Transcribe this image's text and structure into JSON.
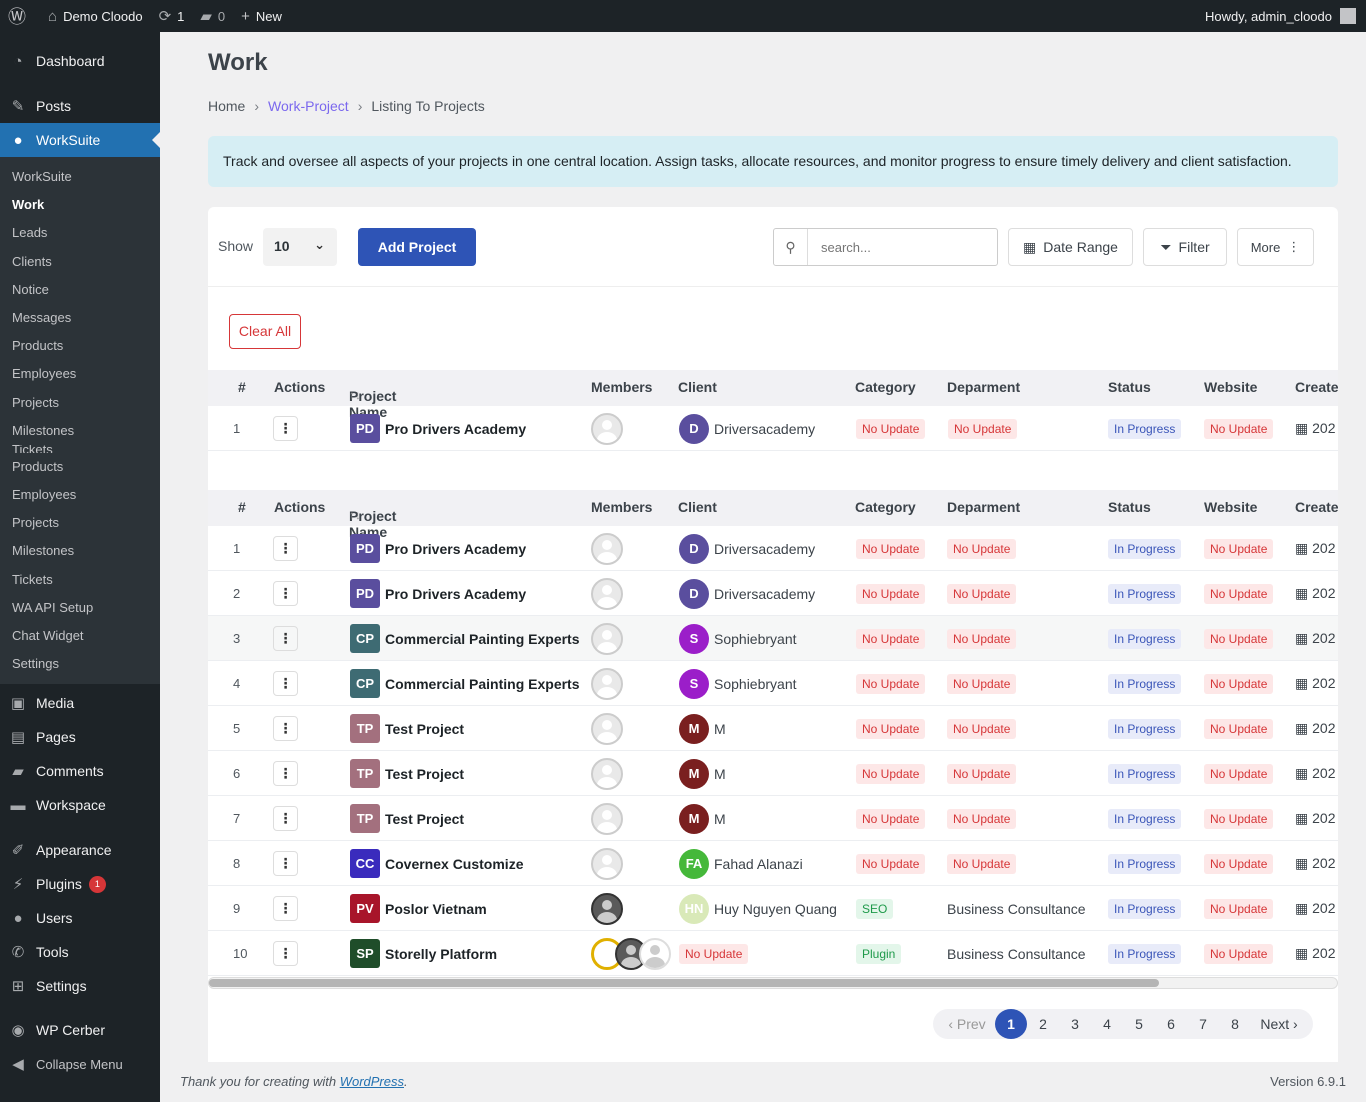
{
  "adminbar": {
    "site_name": "Demo Cloodo",
    "updates_count": "1",
    "comments_count": "0",
    "new_label": "New",
    "howdy": "Howdy, admin_cloodo",
    "wp_logo_icon": "wordpress-icon",
    "home_icon": "home-icon",
    "updates_icon": "refresh-icon",
    "comments_icon": "comment-icon",
    "new_icon": "plus-icon"
  },
  "sidebar": {
    "top_items": [
      {
        "label": "Dashboard",
        "icon": "dashboard-icon"
      },
      {
        "label": "Posts",
        "icon": "pin-icon"
      },
      {
        "label": "WorkSuite",
        "icon": "user-icon"
      }
    ],
    "submenu": [
      "WorkSuite",
      "Work",
      "Leads",
      "Clients",
      "Notice",
      "Messages",
      "Products",
      "Employees",
      "Projects",
      "Milestones",
      "Tickets",
      "Products",
      "Employees",
      "Projects",
      "Milestones",
      "Tickets",
      "WA API Setup",
      "Chat Widget",
      "Settings"
    ],
    "bottom_items": [
      {
        "label": "Media",
        "icon": "media-icon"
      },
      {
        "label": "Pages",
        "icon": "pages-icon"
      },
      {
        "label": "Comments",
        "icon": "comments-icon"
      },
      {
        "label": "Workspace",
        "icon": "folder-icon"
      },
      {
        "label": "Appearance",
        "icon": "brush-icon"
      },
      {
        "label": "Plugins",
        "icon": "plugin-icon",
        "badge": "1"
      },
      {
        "label": "Users",
        "icon": "users-icon"
      },
      {
        "label": "Tools",
        "icon": "wrench-icon"
      },
      {
        "label": "Settings",
        "icon": "settings-icon"
      },
      {
        "label": "WP Cerber",
        "icon": "shield-icon"
      },
      {
        "label": "Collapse Menu",
        "icon": "collapse-icon"
      }
    ]
  },
  "page": {
    "title": "Work",
    "breadcrumb": {
      "home": "Home",
      "section": "Work-Project",
      "current": "Listing To Projects"
    },
    "notice": "Track and oversee all aspects of your projects in one central location. Assign tasks, allocate resources, and monitor progress to ensure timely delivery and client satisfaction."
  },
  "toolbar": {
    "show_label": "Show",
    "show_value": "10",
    "add_project": "Add Project",
    "search_placeholder": "search...",
    "date_range": "Date Range",
    "filter": "Filter",
    "more": "More",
    "clear_all": "Clear All"
  },
  "table": {
    "headers": {
      "num": "#",
      "actions": "Actions",
      "project": "Project Name",
      "members": "Members",
      "client": "Client",
      "category": "Category",
      "department": "Deparment",
      "status": "Status",
      "website": "Website",
      "created": "Create"
    },
    "sticky_row": {
      "num": "1",
      "initials": "PD",
      "color": "#5a4e9e",
      "name": "Pro Drivers Academy",
      "client_initial": "D",
      "client_color": "#5a4e9e",
      "client": "Driversacademy",
      "category": "No Update",
      "department": "No Update",
      "status": "In Progress",
      "website": "No Update",
      "created": "202"
    },
    "rows": [
      {
        "num": "1",
        "initials": "PD",
        "color": "#5a4e9e",
        "name": "Pro Drivers Academy",
        "member": "default",
        "client_initial": "D",
        "client_color": "#5a4e9e",
        "client": "Driversacademy",
        "category": "No Update",
        "cat_style": "red",
        "department": "No Update",
        "dept_style": "pill",
        "status": "In Progress",
        "website": "No Update",
        "created": "202"
      },
      {
        "num": "2",
        "initials": "PD",
        "color": "#5a4e9e",
        "name": "Pro Drivers Academy",
        "member": "default",
        "client_initial": "D",
        "client_color": "#5a4e9e",
        "client": "Driversacademy",
        "category": "No Update",
        "cat_style": "red",
        "department": "No Update",
        "dept_style": "pill",
        "status": "In Progress",
        "website": "No Update",
        "created": "202"
      },
      {
        "num": "3",
        "initials": "CP",
        "color": "#3e6b73",
        "name": "Commercial Painting Experts",
        "member": "default",
        "client_initial": "S",
        "client_color": "#9b1ec9",
        "client": "Sophiebryant",
        "category": "No Update",
        "cat_style": "red",
        "department": "No Update",
        "dept_style": "pill",
        "status": "In Progress",
        "website": "No Update",
        "created": "202",
        "highlight": true
      },
      {
        "num": "4",
        "initials": "CP",
        "color": "#3e6b73",
        "name": "Commercial Painting Experts",
        "member": "default",
        "client_initial": "S",
        "client_color": "#9b1ec9",
        "client": "Sophiebryant",
        "category": "No Update",
        "cat_style": "red",
        "department": "No Update",
        "dept_style": "pill",
        "status": "In Progress",
        "website": "No Update",
        "created": "202"
      },
      {
        "num": "5",
        "initials": "TP",
        "color": "#a3707e",
        "name": "Test Project",
        "member": "default",
        "client_initial": "M",
        "client_color": "#7a1f1f",
        "client": "M",
        "category": "No Update",
        "cat_style": "red",
        "department": "No Update",
        "dept_style": "pill",
        "status": "In Progress",
        "website": "No Update",
        "created": "202"
      },
      {
        "num": "6",
        "initials": "TP",
        "color": "#a3707e",
        "name": "Test Project",
        "member": "default",
        "client_initial": "M",
        "client_color": "#7a1f1f",
        "client": "M",
        "category": "No Update",
        "cat_style": "red",
        "department": "No Update",
        "dept_style": "pill",
        "status": "In Progress",
        "website": "No Update",
        "created": "202"
      },
      {
        "num": "7",
        "initials": "TP",
        "color": "#a3707e",
        "name": "Test Project",
        "member": "default",
        "client_initial": "M",
        "client_color": "#7a1f1f",
        "client": "M",
        "category": "No Update",
        "cat_style": "red",
        "department": "No Update",
        "dept_style": "pill",
        "status": "In Progress",
        "website": "No Update",
        "created": "202"
      },
      {
        "num": "8",
        "initials": "CC",
        "color": "#3a2bbd",
        "name": "Covernex Customize",
        "member": "default",
        "client_initial": "FA",
        "client_color": "#45b83a",
        "client": "Fahad Alanazi",
        "category": "No Update",
        "cat_style": "red",
        "department": "No Update",
        "dept_style": "pill",
        "status": "In Progress",
        "website": "No Update",
        "created": "202"
      },
      {
        "num": "9",
        "initials": "PV",
        "color": "#a8152a",
        "name": "Poslor Vietnam",
        "member": "photo",
        "client_initial": "HN",
        "client_color": "#d9e9b8",
        "client": "Huy Nguyen Quang",
        "category": "SEO",
        "cat_style": "green",
        "department": "Business Consultance",
        "dept_style": "text",
        "status": "In Progress",
        "website": "No Update",
        "created": "202"
      },
      {
        "num": "10",
        "initials": "SP",
        "color": "#1f4d2a",
        "name": "Storelly Platform",
        "member": "group",
        "client_initial": "",
        "client_color": "",
        "client": "No Update",
        "category": "Plugin",
        "cat_style": "green",
        "department": "Business Consultance",
        "dept_style": "text",
        "status": "In Progress",
        "website": "No Update",
        "created": "202"
      }
    ]
  },
  "pagination": {
    "prev": "‹ Prev",
    "pages": [
      "1",
      "2",
      "3",
      "4",
      "5",
      "6",
      "7",
      "8"
    ],
    "current": "1",
    "next": "Next ›"
  },
  "footer": {
    "thanks": "Thank you for creating with ",
    "wp_link": "WordPress",
    "thanks_end": ".",
    "version": "Version 6.9.1"
  }
}
